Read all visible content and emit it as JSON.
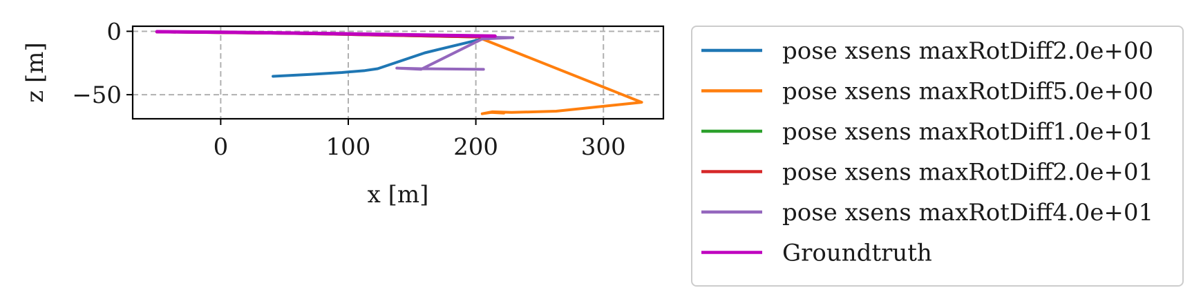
{
  "chart_data": {
    "type": "line",
    "title": "",
    "xlabel": "x [m]",
    "ylabel": "z [m]",
    "xlim": [
      -69,
      347
    ],
    "ylim": [
      -69,
      4
    ],
    "xticks": [
      0,
      100,
      200,
      300
    ],
    "xtick_labels": [
      "0",
      "100",
      "200",
      "300"
    ],
    "yticks": [
      0,
      -50
    ],
    "ytick_labels": [
      "0",
      "−50"
    ],
    "grid": true,
    "legend_position": "outside-right",
    "series": [
      {
        "name": "pose xsens maxRotDiff2.0e+00",
        "color": "#1f77b4",
        "x": [
          41,
          70,
          95,
          113,
          123,
          160,
          205
        ],
        "y": [
          -35.5,
          -34,
          -32.5,
          -31,
          -29.5,
          -17,
          -6
        ]
      },
      {
        "name": "pose xsens maxRotDiff5.0e+00",
        "color": "#ff7f0e",
        "x": [
          205,
          330,
          263,
          228,
          213,
          205,
          212,
          222
        ],
        "y": [
          -6,
          -56,
          -63,
          -64,
          -63.5,
          -65,
          -64,
          -64.5
        ]
      },
      {
        "name": "pose xsens maxRotDiff1.0e+01",
        "color": "#2ca02c",
        "x": [
          -50,
          0,
          50,
          100,
          150,
          205
        ],
        "y": [
          -0.5,
          -1,
          -1.6,
          -2.5,
          -3.5,
          -4.5
        ]
      },
      {
        "name": "pose xsens maxRotDiff2.0e+01",
        "color": "#d62728",
        "x": [
          -50,
          0,
          50,
          100,
          150,
          205
        ],
        "y": [
          -0.5,
          -1,
          -1.6,
          -2.5,
          -3.5,
          -4.5
        ]
      },
      {
        "name": "pose xsens maxRotDiff4.0e+01",
        "color": "#9467bd",
        "x": [
          205,
          229,
          205,
          157,
          138,
          157,
          206
        ],
        "y": [
          -4.5,
          -5,
          -6,
          -30,
          -29,
          -29.5,
          -30
        ]
      },
      {
        "name": "Groundtruth",
        "color": "#bf00bf",
        "x": [
          -50,
          0,
          50,
          100,
          150,
          205,
          215
        ],
        "y": [
          -0.3,
          -0.7,
          -1.3,
          -2,
          -2.8,
          -3.6,
          -3.8
        ]
      }
    ]
  }
}
